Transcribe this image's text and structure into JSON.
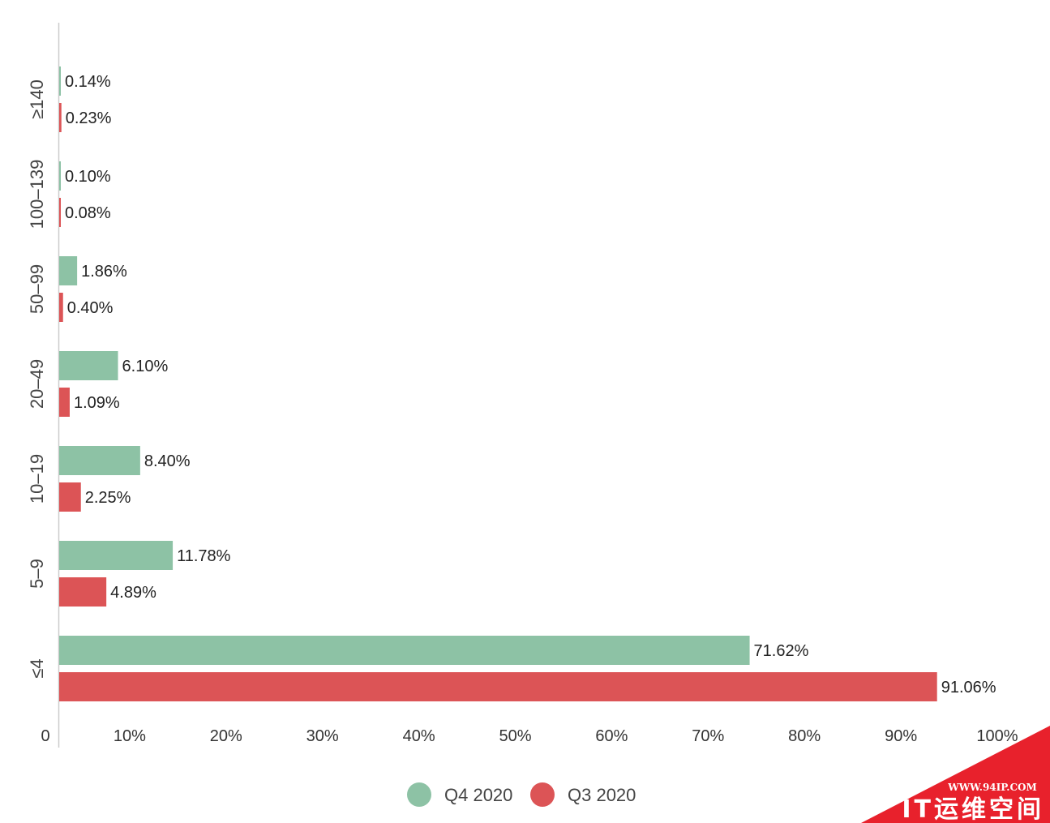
{
  "chart_data": {
    "type": "bar",
    "orientation": "horizontal",
    "categories": [
      "≥140",
      "100–139",
      "50–99",
      "20–49",
      "10–19",
      "5–9",
      "≤4"
    ],
    "series": [
      {
        "name": "Q4 2020",
        "color": "#8dc2a5",
        "values": [
          0.14,
          0.1,
          1.86,
          6.1,
          8.4,
          11.78,
          71.62
        ],
        "labels": [
          "0.14%",
          "0.10%",
          "1.86%",
          "6.10%",
          "8.40%",
          "11.78%",
          "71.62%"
        ]
      },
      {
        "name": "Q3 2020",
        "color": "#dc5456",
        "values": [
          0.23,
          0.08,
          0.4,
          1.09,
          2.25,
          4.89,
          91.06
        ],
        "labels": [
          "0.23%",
          "0.08%",
          "0.40%",
          "1.09%",
          "2.25%",
          "4.89%",
          "91.06%"
        ]
      }
    ],
    "x_ticks": [
      "0",
      "10%",
      "20%",
      "30%",
      "40%",
      "50%",
      "60%",
      "70%",
      "80%",
      "90%",
      "100%"
    ],
    "xlim": [
      0,
      100
    ],
    "grid": false,
    "legend": "bottom-center"
  },
  "watermark": {
    "url": "WWW.94IP.COM",
    "brand": "IT运维空间",
    "color": "#e8212c"
  }
}
